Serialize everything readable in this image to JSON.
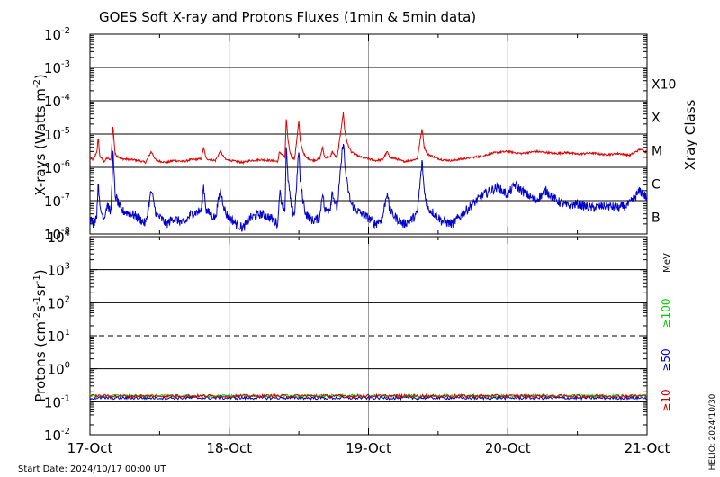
{
  "title": "GOES Soft X-ray and Protons Fluxes   (1min & 5min data)",
  "x_tick_labels": [
    "17-Oct",
    "18-Oct",
    "19-Oct",
    "20-Oct",
    "21-Oct"
  ],
  "start_date": "Start Date: 2024/10/17 00:00 UT",
  "helio_stamp": "HELIO: 2024/10/30",
  "colors": {
    "xray_long": "#e00000",
    "xray_short": "#0000d0",
    "proton_10": "#d00000",
    "proton_50": "#0000c0",
    "proton_100": "#00d000",
    "grid": "#999999",
    "axis": "#000000"
  },
  "xray_panel": {
    "ylabel_main": "X-rays (Watts m",
    "ylabel_sup": "-2",
    "ylabel_end": ")",
    "right_label": "Xray Class",
    "class_labels": [
      "X10",
      "X",
      "M",
      "C",
      "B"
    ],
    "tick_base": "10",
    "tick_exponents": [
      "-2",
      "-3",
      "-4",
      "-5",
      "-6",
      "-7",
      "-8"
    ]
  },
  "proton_panel": {
    "ylabel_parts": [
      "Protons (cm",
      "-2",
      "s",
      "-1",
      "sr",
      "-1",
      ")"
    ],
    "unit_label": "MeV",
    "energy_labels": [
      "≥100",
      "≥50",
      "≥10"
    ],
    "tick_base": "10",
    "tick_exponents": [
      "4",
      "3",
      "2",
      "1",
      "0",
      "-1",
      "-2"
    ]
  },
  "chart_data": [
    {
      "type": "line",
      "title": "GOES Soft X-ray and Protons Fluxes   (1min & 5min data)",
      "x": [
        "2024-10-17",
        "2024-10-21"
      ],
      "ylabel": "X-rays (Watts m-2)",
      "yscale": "log",
      "ylim": [
        1e-08,
        0.01
      ],
      "class_thresholds": {
        "B": 1e-07,
        "C": 1e-06,
        "M": 1e-05,
        "X": 0.0001,
        "X10": 0.001
      },
      "series": [
        {
          "name": "long",
          "color": "#e00000",
          "points": [
            [
              0.0,
              1.8e-06
            ],
            [
              0.05,
              1.7e-06
            ],
            [
              0.1,
              3e-06
            ],
            [
              0.12,
              8e-06
            ],
            [
              0.14,
              2.2e-06
            ],
            [
              0.2,
              1.5e-06
            ],
            [
              0.25,
              1.9e-06
            ],
            [
              0.3,
              1.6e-06
            ],
            [
              0.33,
              1.8e-05
            ],
            [
              0.36,
              2.5e-06
            ],
            [
              0.45,
              1.8e-06
            ],
            [
              0.6,
              1.7e-06
            ],
            [
              0.7,
              1.6e-06
            ],
            [
              0.8,
              1.4e-06
            ],
            [
              0.88,
              3e-06
            ],
            [
              0.95,
              1.6e-06
            ],
            [
              1.1,
              1.4e-06
            ],
            [
              1.2,
              1.6e-06
            ],
            [
              1.35,
              1.5e-06
            ],
            [
              1.45,
              1.7e-06
            ],
            [
              1.6,
              1.8e-06
            ],
            [
              1.63,
              4e-06
            ],
            [
              1.67,
              1.8e-06
            ],
            [
              1.8,
              1.6e-06
            ],
            [
              1.87,
              3e-06
            ],
            [
              1.95,
              1.7e-06
            ],
            [
              2.1,
              1.5e-06
            ],
            [
              2.2,
              1.4e-06
            ],
            [
              2.3,
              1.6e-06
            ],
            [
              2.45,
              1.7e-06
            ],
            [
              2.6,
              1.6e-06
            ],
            [
              2.7,
              1.5e-06
            ],
            [
              2.72,
              3e-06
            ],
            [
              2.75,
              2.5e-06
            ],
            [
              2.8,
              2e-06
            ],
            [
              2.82,
              3e-05
            ],
            [
              2.84,
              8e-06
            ],
            [
              2.87,
              3e-06
            ],
            [
              2.9,
              2e-06
            ],
            [
              2.94,
              1.8e-06
            ],
            [
              3.0,
              2.5e-05
            ],
            [
              3.02,
              6e-06
            ],
            [
              3.06,
              3e-06
            ],
            [
              3.1,
              2e-06
            ],
            [
              3.2,
              1.6e-06
            ],
            [
              3.3,
              1.8e-06
            ],
            [
              3.34,
              4e-06
            ],
            [
              3.37,
              2e-06
            ],
            [
              3.45,
              2e-06
            ],
            [
              3.48,
              3e-06
            ],
            [
              3.52,
              2.2e-06
            ],
            [
              3.55,
              2e-06
            ],
            [
              3.64,
              4.5e-05
            ],
            [
              3.66,
              1.2e-05
            ],
            [
              3.7,
              5e-06
            ],
            [
              3.75,
              3e-06
            ],
            [
              3.8,
              2.5e-06
            ],
            [
              3.9,
              2e-06
            ],
            [
              4.0,
              1.8e-06
            ],
            [
              4.1,
              1.6e-06
            ],
            [
              4.2,
              1.7e-06
            ],
            [
              4.27,
              3e-06
            ],
            [
              4.3,
              2e-06
            ],
            [
              4.4,
              1.8e-06
            ],
            [
              4.5,
              1.5e-06
            ],
            [
              4.6,
              1.6e-06
            ],
            [
              4.7,
              1.8e-06
            ],
            [
              4.77,
              1.5e-05
            ],
            [
              4.8,
              4e-06
            ],
            [
              4.85,
              2.5e-06
            ],
            [
              4.95,
              2e-06
            ],
            [
              5.05,
              1.7e-06
            ],
            [
              5.2,
              1.6e-06
            ],
            [
              5.35,
              1.8e-06
            ],
            [
              5.5,
              2e-06
            ],
            [
              5.65,
              2.2e-06
            ],
            [
              5.75,
              2.6e-06
            ],
            [
              5.85,
              2.8e-06
            ],
            [
              6.0,
              3e-06
            ],
            [
              6.2,
              2.6e-06
            ],
            [
              6.4,
              3e-06
            ],
            [
              6.55,
              2.8e-06
            ],
            [
              6.7,
              2.6e-06
            ],
            [
              6.85,
              2.8e-06
            ],
            [
              7.0,
              2.5e-06
            ],
            [
              7.2,
              2.7e-06
            ],
            [
              7.4,
              2.4e-06
            ],
            [
              7.6,
              2.6e-06
            ],
            [
              7.75,
              2.3e-06
            ],
            [
              7.9,
              3.5e-06
            ],
            [
              8.0,
              2.8e-06
            ]
          ]
        },
        {
          "name": "short",
          "color": "#0000d0",
          "points": [
            [
              0.0,
              3e-08
            ],
            [
              0.05,
              2e-08
            ],
            [
              0.1,
              4e-08
            ],
            [
              0.12,
              5e-07
            ],
            [
              0.14,
              6e-08
            ],
            [
              0.2,
              3e-08
            ],
            [
              0.25,
              8e-08
            ],
            [
              0.3,
              4e-08
            ],
            [
              0.33,
              3e-06
            ],
            [
              0.36,
              1.5e-07
            ],
            [
              0.45,
              5e-08
            ],
            [
              0.6,
              4e-08
            ],
            [
              0.7,
              3e-08
            ],
            [
              0.8,
              2e-08
            ],
            [
              0.88,
              2e-07
            ],
            [
              0.95,
              4e-08
            ],
            [
              1.1,
              2e-08
            ],
            [
              1.2,
              3e-08
            ],
            [
              1.35,
              2e-08
            ],
            [
              1.45,
              4e-08
            ],
            [
              1.6,
              5e-08
            ],
            [
              1.63,
              3e-07
            ],
            [
              1.67,
              5e-08
            ],
            [
              1.8,
              3e-08
            ],
            [
              1.87,
              2e-07
            ],
            [
              1.95,
              4e-08
            ],
            [
              2.1,
              2e-08
            ],
            [
              2.2,
              1.5e-08
            ],
            [
              2.3,
              3e-08
            ],
            [
              2.45,
              4e-08
            ],
            [
              2.6,
              3e-08
            ],
            [
              2.7,
              2e-08
            ],
            [
              2.72,
              2e-07
            ],
            [
              2.75,
              1e-07
            ],
            [
              2.8,
              5e-08
            ],
            [
              2.82,
              4e-06
            ],
            [
              2.84,
              6e-07
            ],
            [
              2.87,
              1.5e-07
            ],
            [
              2.9,
              5e-08
            ],
            [
              2.94,
              4e-08
            ],
            [
              3.0,
              3.5e-06
            ],
            [
              3.02,
              4e-07
            ],
            [
              3.06,
              1e-07
            ],
            [
              3.1,
              4e-08
            ],
            [
              3.2,
              2.5e-08
            ],
            [
              3.3,
              3e-08
            ],
            [
              3.34,
              2e-07
            ],
            [
              3.37,
              5e-08
            ],
            [
              3.45,
              6e-08
            ],
            [
              3.48,
              2e-07
            ],
            [
              3.52,
              8e-08
            ],
            [
              3.55,
              6e-08
            ],
            [
              3.64,
              7e-06
            ],
            [
              3.66,
              1.2e-06
            ],
            [
              3.7,
              2.5e-07
            ],
            [
              3.75,
              8e-08
            ],
            [
              3.8,
              6e-08
            ],
            [
              3.9,
              4e-08
            ],
            [
              4.0,
              3e-08
            ],
            [
              4.1,
              2e-08
            ],
            [
              4.2,
              3e-08
            ],
            [
              4.27,
              2e-07
            ],
            [
              4.3,
              5e-08
            ],
            [
              4.4,
              3e-08
            ],
            [
              4.5,
              2e-08
            ],
            [
              4.6,
              2.5e-08
            ],
            [
              4.7,
              4e-08
            ],
            [
              4.77,
              1.5e-06
            ],
            [
              4.8,
              2e-07
            ],
            [
              4.85,
              6e-08
            ],
            [
              4.95,
              4e-08
            ],
            [
              5.05,
              2.5e-08
            ],
            [
              5.2,
              2e-08
            ],
            [
              5.35,
              4e-08
            ],
            [
              5.5,
              8e-08
            ],
            [
              5.65,
              1.5e-07
            ],
            [
              5.75,
              2e-07
            ],
            [
              5.85,
              2.5e-07
            ],
            [
              6.0,
              1.5e-07
            ],
            [
              6.1,
              3e-07
            ],
            [
              6.2,
              2e-07
            ],
            [
              6.4,
              1e-07
            ],
            [
              6.55,
              2e-07
            ],
            [
              6.7,
              1e-07
            ],
            [
              6.85,
              7e-08
            ],
            [
              7.0,
              8e-08
            ],
            [
              7.2,
              6e-08
            ],
            [
              7.4,
              7e-08
            ],
            [
              7.6,
              6e-08
            ],
            [
              7.75,
              8e-08
            ],
            [
              7.9,
              2e-07
            ],
            [
              8.0,
              1.2e-07
            ]
          ]
        }
      ]
    },
    {
      "type": "line",
      "x": [
        "2024-10-17",
        "2024-10-21"
      ],
      "ylabel": "Protons (cm-2 s-1 sr-1)",
      "yscale": "log",
      "ylim": [
        0.01,
        10000
      ],
      "threshold_line": 10,
      "series": [
        {
          "name": "≥10",
          "color": "#d00000",
          "mean": 0.15
        },
        {
          "name": "≥50",
          "color": "#0000c0",
          "mean": 0.13
        },
        {
          "name": "≥100",
          "color": "#00d000",
          "mean": 0.15
        }
      ]
    }
  ]
}
